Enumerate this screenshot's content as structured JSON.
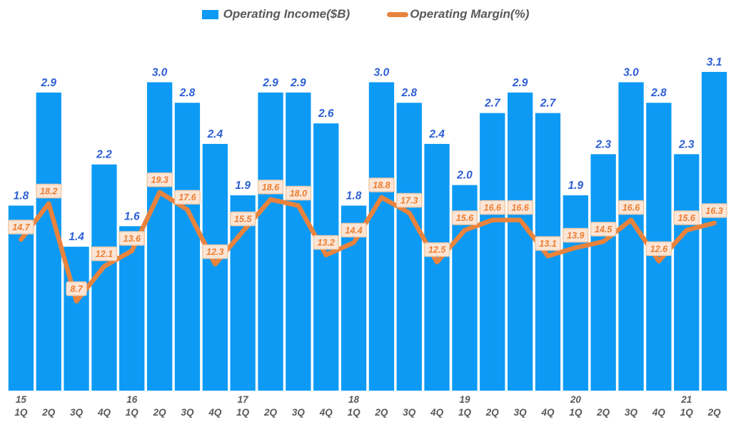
{
  "legend": {
    "income_label": "Operating Income($B)",
    "margin_label": "Operating Margin(%)"
  },
  "colors": {
    "bar": "#0c9af5",
    "bar_value_label": "#2e5fd3",
    "line": "#e8833d",
    "margin_label_text": "#ed7d31",
    "margin_label_bg": "#fbe5d6",
    "margin_label_border": "#f2c9a6",
    "axis_text": "#595959"
  },
  "chart_data": {
    "type": "bar",
    "title": "",
    "xlabel": "",
    "ylabel": "",
    "grid": false,
    "legend_position": "top",
    "bar_axis_range": [
      0,
      3.8
    ],
    "margin_axis_range": [
      0,
      38
    ],
    "categories_quarter": [
      "1Q",
      "2Q",
      "3Q",
      "4Q",
      "1Q",
      "2Q",
      "3Q",
      "4Q",
      "1Q",
      "2Q",
      "3Q",
      "4Q",
      "1Q",
      "2Q",
      "3Q",
      "4Q",
      "1Q",
      "2Q",
      "3Q",
      "4Q",
      "1Q",
      "2Q",
      "3Q",
      "4Q",
      "1Q",
      "2Q"
    ],
    "categories_year": [
      "15",
      "",
      "",
      "",
      "16",
      "",
      "",
      "",
      "17",
      "",
      "",
      "",
      "18",
      "",
      "",
      "",
      "19",
      "",
      "",
      "",
      "20",
      "",
      "",
      "",
      "21",
      ""
    ],
    "series": [
      {
        "name": "Operating Income($B)",
        "type": "bar",
        "values": [
          1.8,
          2.9,
          1.4,
          2.2,
          1.6,
          3.0,
          2.8,
          2.4,
          1.9,
          2.9,
          2.9,
          2.6,
          1.8,
          3.0,
          2.8,
          2.4,
          2.0,
          2.7,
          2.9,
          2.7,
          1.9,
          2.3,
          3.0,
          2.8,
          2.3,
          3.1
        ]
      },
      {
        "name": "Operating Margin(%)",
        "type": "line",
        "values": [
          14.7,
          18.2,
          8.7,
          12.1,
          13.6,
          19.3,
          17.6,
          12.3,
          15.5,
          18.6,
          18.0,
          13.2,
          14.4,
          18.8,
          17.3,
          12.5,
          15.6,
          16.6,
          16.6,
          13.1,
          13.9,
          14.5,
          16.6,
          12.6,
          15.6,
          16.3
        ]
      }
    ]
  }
}
